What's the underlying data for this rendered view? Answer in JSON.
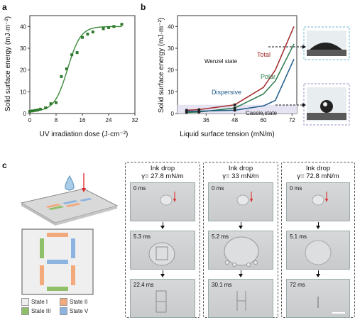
{
  "panels": {
    "a": "a",
    "b": "b",
    "c": "c"
  },
  "colors": {
    "state_I": "#efefef",
    "state_II": "#f2a97c",
    "state_III": "#8fbf69",
    "state_V": "#8db4e0",
    "total": "#a12a2a",
    "polar": "#2b7a4b",
    "dispersive": "#1f5a8a",
    "fit_a": "#3a8a3a"
  },
  "chart_data": [
    {
      "type": "scatter",
      "title": "",
      "xlabel": "UV irradiation dose (J·cm⁻²)",
      "ylabel": "Solid surface energy (mJ·m⁻²)",
      "xlim": [
        0,
        32
      ],
      "ylim": [
        0,
        45
      ],
      "xticks": [
        "0",
        "8",
        "16",
        "24",
        "32"
      ],
      "yticks": [
        "0",
        "10",
        "20",
        "30",
        "40"
      ],
      "points": [
        {
          "x": 0,
          "y": 1
        },
        {
          "x": 0.8,
          "y": 1.2
        },
        {
          "x": 1.6,
          "y": 1.4
        },
        {
          "x": 2.4,
          "y": 1.6
        },
        {
          "x": 3.2,
          "y": 2
        },
        {
          "x": 4.8,
          "y": 2.6
        },
        {
          "x": 6.4,
          "y": 4.5
        },
        {
          "x": 8,
          "y": 5
        },
        {
          "x": 9.6,
          "y": 17
        },
        {
          "x": 11.2,
          "y": 20.5
        },
        {
          "x": 12.8,
          "y": 27
        },
        {
          "x": 14.4,
          "y": 28
        },
        {
          "x": 16,
          "y": 35
        },
        {
          "x": 17.6,
          "y": 36.5
        },
        {
          "x": 19.2,
          "y": 37.5
        },
        {
          "x": 22.4,
          "y": 39
        },
        {
          "x": 24,
          "y": 39.5
        },
        {
          "x": 25.6,
          "y": 40
        },
        {
          "x": 28,
          "y": 41
        }
      ],
      "fit": {
        "min": 1,
        "max": 40,
        "x0": 11.5,
        "k": 0.5
      }
    },
    {
      "type": "line",
      "title": "",
      "xlabel": "Liquid surface tension (mN/m)",
      "ylabel": "Solid surface energy (mJ·m⁻²)",
      "xlim": [
        24,
        74
      ],
      "ylim": [
        0,
        45
      ],
      "xticks": [
        "36",
        "48",
        "60",
        "72"
      ],
      "yticks": [
        "0",
        "10",
        "20",
        "30",
        "40"
      ],
      "series": [
        {
          "name": "Total",
          "x": [
            27.8,
            33,
            48,
            60,
            65,
            72.8
          ],
          "y": [
            1.5,
            1.8,
            4,
            12,
            20,
            40
          ]
        },
        {
          "name": "Polar",
          "x": [
            27.8,
            33,
            48,
            60,
            65,
            72.8
          ],
          "y": [
            0.5,
            0.7,
            2.5,
            9,
            15,
            32
          ]
        },
        {
          "name": "Dispersive",
          "x": [
            27.8,
            33,
            48,
            60,
            65,
            72.8
          ],
          "y": [
            1,
            1.1,
            1.5,
            3.5,
            6,
            25
          ]
        }
      ],
      "annotations": [
        "Wenzel state",
        "Cassie state"
      ]
    }
  ],
  "panel_c": {
    "legend": [
      {
        "label": "State I",
        "color_key": "state_I"
      },
      {
        "label": "State II",
        "color_key": "state_II"
      },
      {
        "label": "State III",
        "color_key": "state_III"
      },
      {
        "label": "State V",
        "color_key": "state_V"
      }
    ],
    "groups": [
      {
        "title": "Ink drop",
        "gamma": "γ= 27.8 mN/m",
        "frames": [
          "0 ms",
          "5.3 ms",
          "22.4 ms"
        ]
      },
      {
        "title": "Ink drop",
        "gamma": "γ= 33 mN/m",
        "frames": [
          "0 ms",
          "5.2 ms",
          "30.1 ms"
        ]
      },
      {
        "title": "Ink drop",
        "gamma": "γ= 72.8 mN/m",
        "frames": [
          "0 ms",
          "5.1 ms",
          "72 ms"
        ]
      }
    ]
  }
}
